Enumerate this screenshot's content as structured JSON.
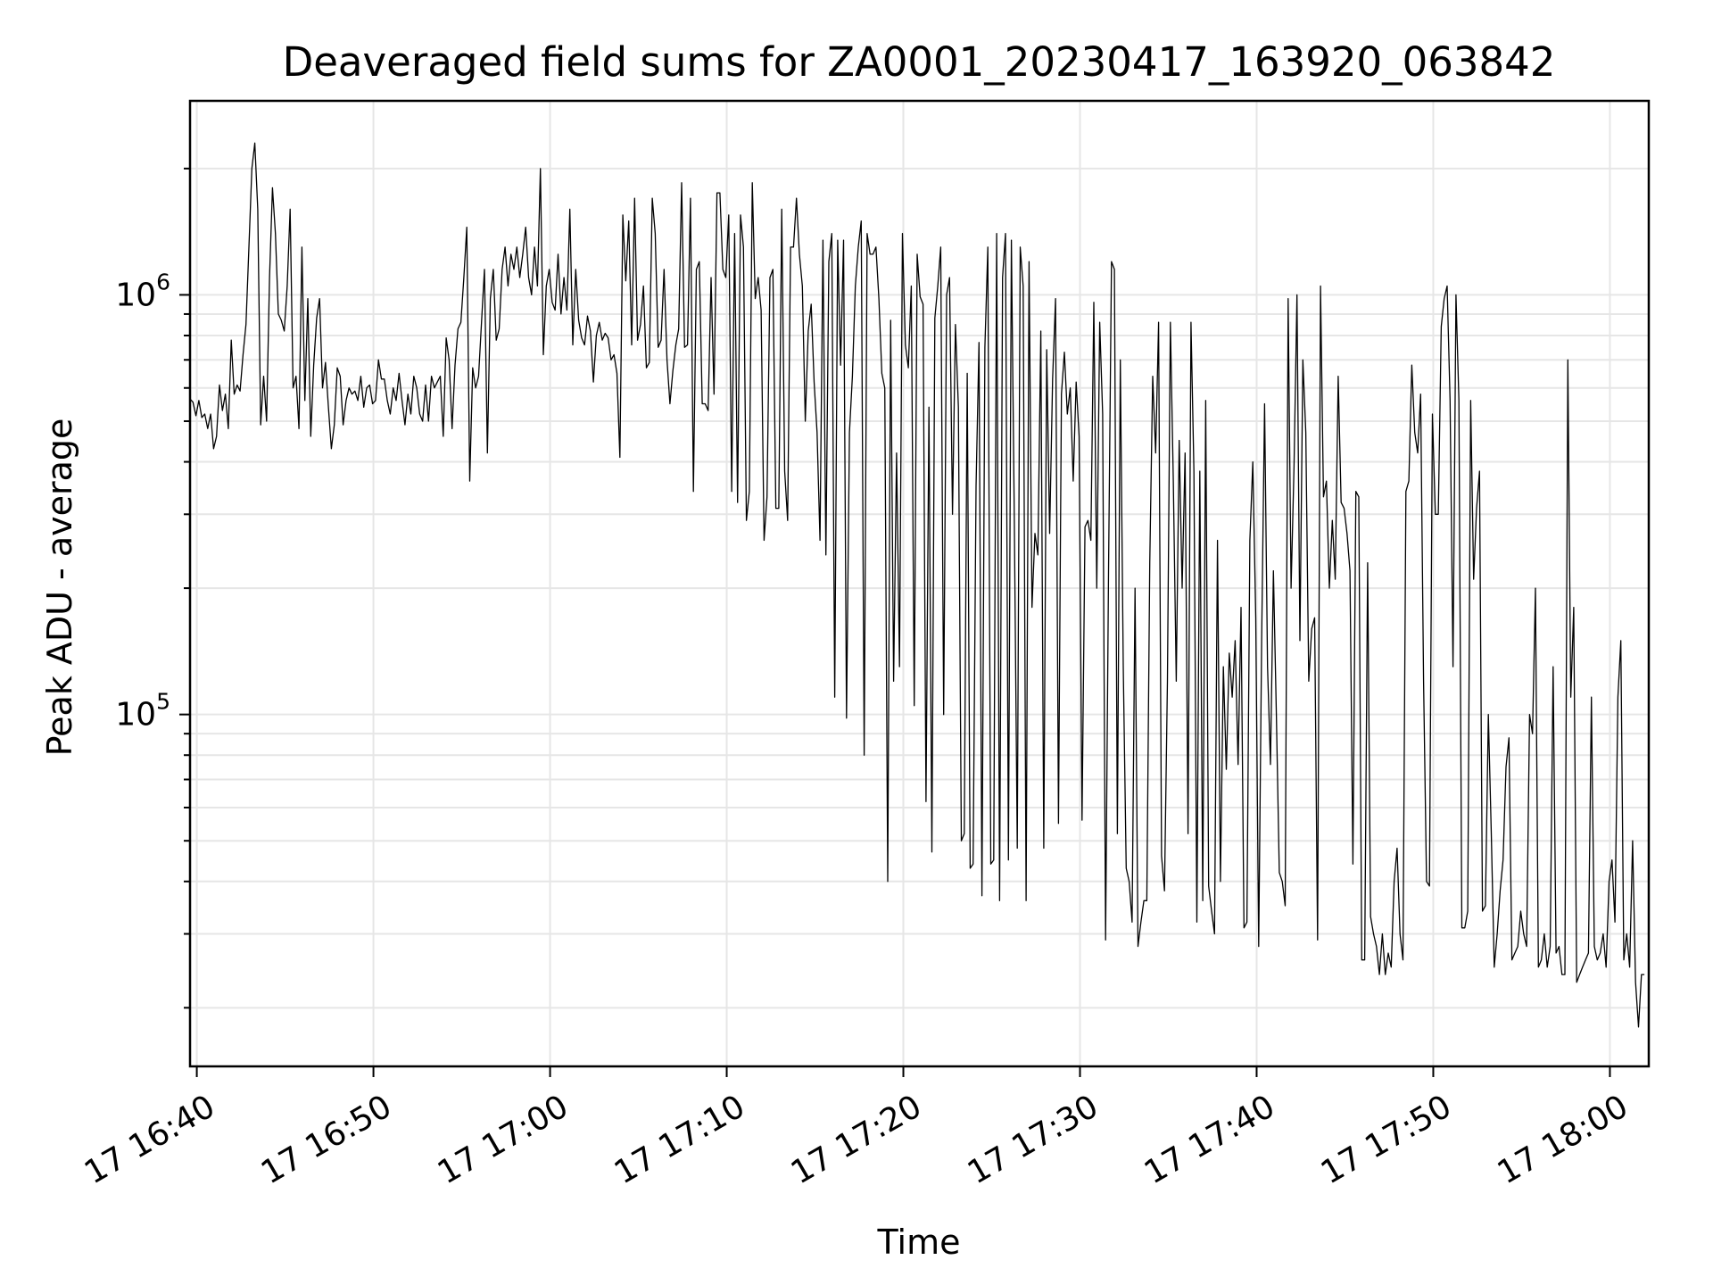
{
  "chart_data": {
    "type": "line",
    "title": "Deaveraged field sums for ZA0001_20230417_163920_063842",
    "xlabel": "Time",
    "ylabel": "Peak ADU - average",
    "yscale": "log",
    "grid": true,
    "x_ticks": [
      "17 16:40",
      "17 16:50",
      "17 17:00",
      "17 17:10",
      "17 17:20",
      "17 17:30",
      "17 17:40",
      "17 17:50",
      "17 18:00"
    ],
    "y_ticks": [
      {
        "base": "10",
        "exp": "6",
        "value": 1000000
      },
      {
        "base": "10",
        "exp": "5",
        "value": 100000
      }
    ],
    "xlim": [
      "17 16:39:37",
      "17 18:02:12"
    ],
    "ylim": [
      14500,
      2900000
    ],
    "colors": {
      "line": "#000000",
      "grid": "#e6e6e6",
      "axes": "#000000"
    },
    "series": [
      {
        "x_start": "17 16:39:37",
        "x_step_seconds": 10,
        "values": [
          565000,
          555000,
          515000,
          560000,
          510000,
          520000,
          480000,
          520000,
          430000,
          460000,
          610000,
          530000,
          580000,
          480000,
          780000,
          580000,
          610000,
          590000,
          720000,
          850000,
          1300000,
          2000000,
          2300000,
          1600000,
          490000,
          640000,
          500000,
          1100000,
          1800000,
          1400000,
          900000,
          870000,
          820000,
          1050000,
          1600000,
          600000,
          640000,
          480000,
          1300000,
          560000,
          980000,
          460000,
          680000,
          880000,
          980000,
          600000,
          690000,
          540000,
          430000,
          490000,
          670000,
          640000,
          490000,
          560000,
          600000,
          580000,
          590000,
          560000,
          640000,
          540000,
          600000,
          610000,
          550000,
          560000,
          700000,
          630000,
          630000,
          560000,
          520000,
          600000,
          560000,
          650000,
          560000,
          490000,
          580000,
          520000,
          640000,
          600000,
          520000,
          500000,
          610000,
          500000,
          640000,
          600000,
          620000,
          640000,
          460000,
          790000,
          700000,
          480000,
          680000,
          830000,
          860000,
          1100000,
          1450000,
          360000,
          670000,
          600000,
          640000,
          860000,
          1150000,
          420000,
          980000,
          1150000,
          780000,
          830000,
          1150000,
          1300000,
          1050000,
          1250000,
          1150000,
          1300000,
          1100000,
          1250000,
          1450000,
          1100000,
          1000000,
          1300000,
          1050000,
          2000000,
          720000,
          1050000,
          1150000,
          960000,
          920000,
          1250000,
          900000,
          1100000,
          920000,
          1600000,
          760000,
          1150000,
          870000,
          790000,
          760000,
          890000,
          820000,
          620000,
          800000,
          860000,
          780000,
          810000,
          790000,
          700000,
          720000,
          650000,
          410000,
          1550000,
          1080000,
          1500000,
          760000,
          1700000,
          780000,
          850000,
          1050000,
          670000,
          690000,
          1700000,
          1400000,
          750000,
          780000,
          1150000,
          700000,
          550000,
          660000,
          760000,
          830000,
          1850000,
          750000,
          760000,
          1700000,
          340000,
          1150000,
          1200000,
          550000,
          550000,
          530000,
          1100000,
          580000,
          1750000,
          1750000,
          1150000,
          1100000,
          1550000,
          340000,
          1400000,
          320000,
          1550000,
          1300000,
          290000,
          340000,
          1850000,
          980000,
          1100000,
          920000,
          260000,
          330000,
          1100000,
          1150000,
          310000,
          310000,
          1600000,
          380000,
          290000,
          1300000,
          1300000,
          1700000,
          1250000,
          1050000,
          500000,
          820000,
          950000,
          620000,
          470000,
          260000,
          1350000,
          240000,
          1200000,
          1400000,
          110000,
          1350000,
          680000,
          1350000,
          98000,
          470000,
          640000,
          1050000,
          1300000,
          1500000,
          80000,
          1400000,
          1250000,
          1250000,
          1300000,
          980000,
          650000,
          600000,
          40000,
          870000,
          120000,
          420000,
          130000,
          1400000,
          760000,
          670000,
          1050000,
          105000,
          1250000,
          990000,
          950000,
          62000,
          540000,
          47000,
          880000,
          1050000,
          1300000,
          100000,
          1000000,
          1100000,
          300000,
          850000,
          540000,
          50000,
          52000,
          650000,
          43000,
          44000,
          350000,
          770000,
          37000,
          750000,
          1300000,
          44000,
          45000,
          1400000,
          36000,
          1100000,
          1400000,
          45000,
          1350000,
          290000,
          48000,
          1300000,
          1050000,
          36000,
          1200000,
          180000,
          270000,
          240000,
          820000,
          48000,
          740000,
          270000,
          630000,
          980000,
          55000,
          580000,
          730000,
          520000,
          600000,
          360000,
          620000,
          460000,
          56000,
          280000,
          290000,
          260000,
          960000,
          200000,
          860000,
          520000,
          29000,
          220000,
          1200000,
          1150000,
          52000,
          700000,
          130000,
          43000,
          40000,
          32000,
          200000,
          28000,
          32000,
          36000,
          36000,
          230000,
          640000,
          420000,
          860000,
          46000,
          38000,
          120000,
          860000,
          360000,
          120000,
          450000,
          200000,
          420000,
          52000,
          860000,
          380000,
          32000,
          380000,
          36000,
          560000,
          39000,
          34000,
          30000,
          260000,
          40000,
          130000,
          74000,
          140000,
          110000,
          150000,
          76000,
          180000,
          31000,
          32000,
          260000,
          400000,
          170000,
          28000,
          150000,
          550000,
          130000,
          76000,
          220000,
          100000,
          42000,
          40000,
          35000,
          980000,
          200000,
          390000,
          1000000,
          150000,
          700000,
          470000,
          120000,
          160000,
          170000,
          29000,
          1050000,
          330000,
          360000,
          200000,
          290000,
          210000,
          640000,
          320000,
          310000,
          270000,
          220000,
          44000,
          340000,
          330000,
          26000,
          26000,
          230000,
          33000,
          30000,
          28000,
          24000,
          30000,
          24000,
          27000,
          25000,
          40000,
          48000,
          30000,
          26000,
          340000,
          360000,
          680000,
          470000,
          420000,
          580000,
          120000,
          40000,
          39000,
          520000,
          300000,
          300000,
          840000,
          980000,
          1050000,
          560000,
          130000,
          1000000,
          560000,
          31000,
          31000,
          34000,
          560000,
          210000,
          310000,
          380000,
          34000,
          35000,
          100000,
          52000,
          25000,
          30000,
          38000,
          45000,
          75000,
          88000,
          26000,
          27000,
          28000,
          34000,
          30000,
          28000,
          100000,
          90000,
          200000,
          25000,
          26000,
          30000,
          25000,
          28000,
          130000,
          27000,
          28000,
          24000,
          24000,
          700000,
          110000,
          180000,
          23000,
          24000,
          25000,
          26000,
          27000,
          110000,
          28000,
          26000,
          27000,
          30000,
          25000,
          40000,
          45000,
          32000,
          110000,
          150000,
          26000,
          30000,
          25000,
          50000,
          23000,
          18000,
          24000,
          24000
        ]
      }
    ]
  }
}
